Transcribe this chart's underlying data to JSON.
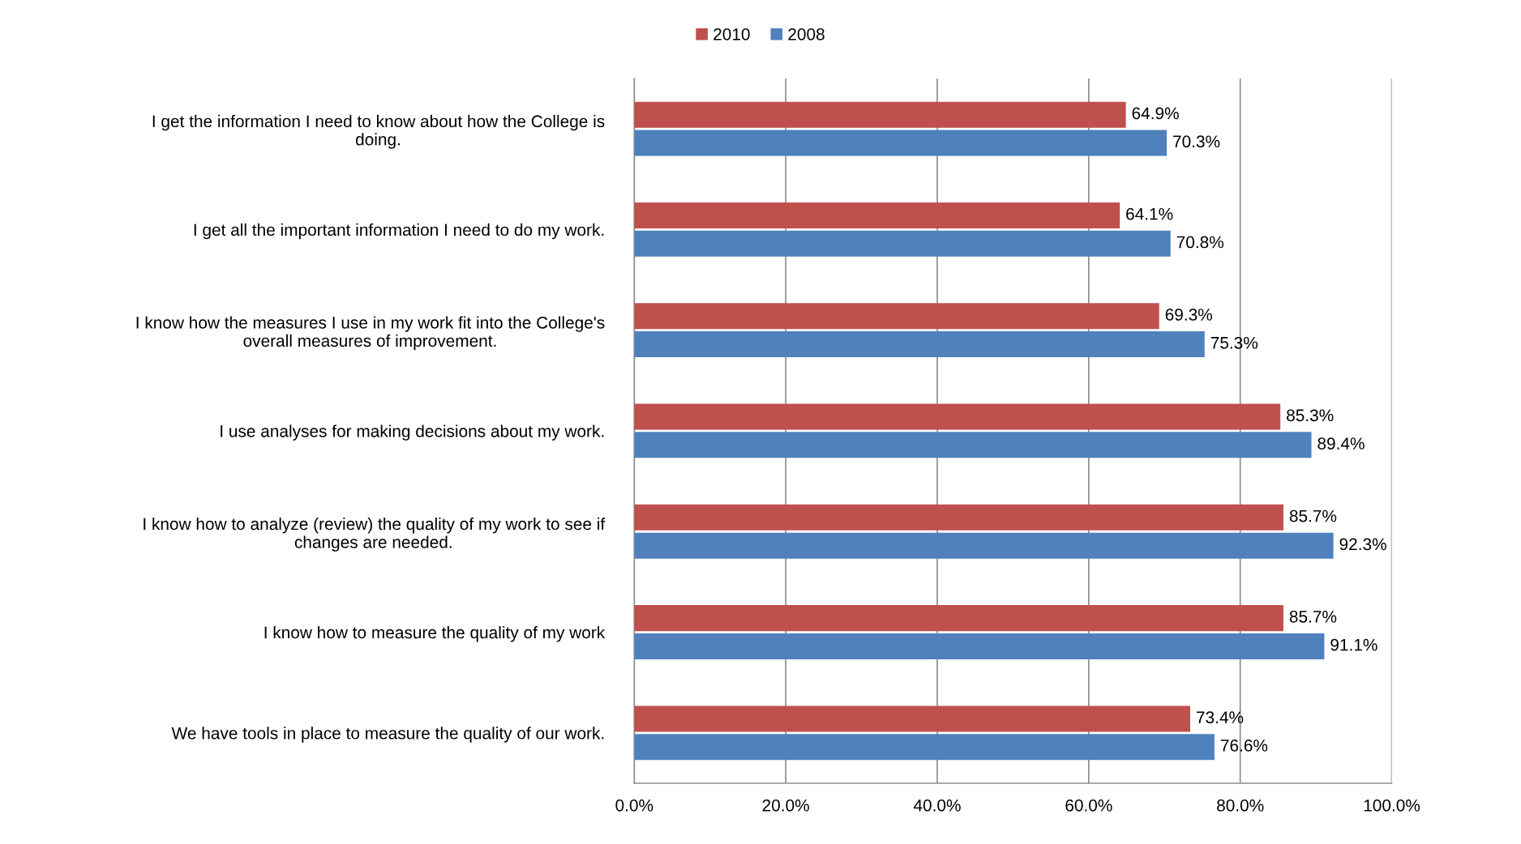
{
  "chart_data": {
    "type": "bar",
    "orientation": "horizontal",
    "categories": [
      "I get the information I need to know about how the College is doing.",
      "I get all the important information I need to do my work.",
      "I know how the measures I use in my work fit into the College's overall measures of improvement.",
      "I use analyses for making decisions about my work.",
      "I know how to analyze (review) the quality of my work to see if changes are needed.",
      "I know how to measure the quality of my work",
      "We have tools in place to measure the quality of our work."
    ],
    "series": [
      {
        "name": "2010",
        "color": "#c0504d",
        "values": [
          64.9,
          64.1,
          69.3,
          85.3,
          85.7,
          85.7,
          73.4
        ],
        "value_labels": [
          "64.9%",
          "64.1%",
          "69.3%",
          "85.3%",
          "85.7%",
          "85.7%",
          "73.4%"
        ]
      },
      {
        "name": "2008",
        "color": "#4f81bd",
        "values": [
          70.3,
          70.8,
          75.3,
          89.4,
          92.3,
          91.1,
          76.6
        ],
        "value_labels": [
          "70.3%",
          "70.8%",
          "75.3%",
          "89.4%",
          "92.3%",
          "91.1%",
          "76.6%"
        ]
      }
    ],
    "xlim": [
      0,
      100
    ],
    "xticks": [
      {
        "value": 0,
        "label": "0.0%"
      },
      {
        "value": 20,
        "label": "20.0%"
      },
      {
        "value": 40,
        "label": "40.0%"
      },
      {
        "value": 60,
        "label": "60.0%"
      },
      {
        "value": 80,
        "label": "80.0%"
      },
      {
        "value": 100,
        "label": "100.0%"
      }
    ],
    "grid": "x",
    "legend": "top"
  }
}
